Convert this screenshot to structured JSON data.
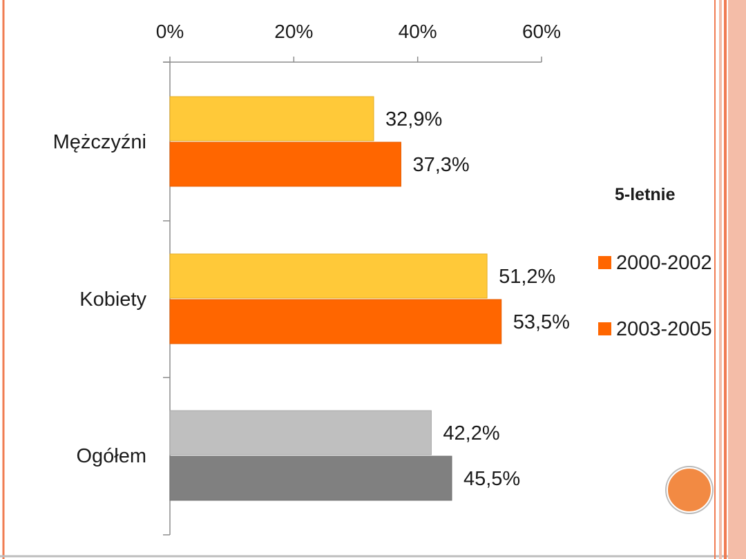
{
  "chart_data": {
    "type": "bar",
    "orientation": "horizontal",
    "categories": [
      "Mężczyźni",
      "Kobiety",
      "Ogółem"
    ],
    "series": [
      {
        "name": "2000-2002",
        "values": [
          32.9,
          51.2,
          42.2
        ],
        "colors": [
          "#ffc939",
          "#ffc939",
          "#bfbfbf"
        ]
      },
      {
        "name": "2003-2005",
        "values": [
          37.3,
          53.5,
          45.5
        ],
        "colors": [
          "#ff6600",
          "#ff6600",
          "#808080"
        ]
      }
    ],
    "data_labels": [
      [
        "32,9%",
        "51,2%",
        "42,2%"
      ],
      [
        "37,3%",
        "53,5%",
        "45,5%"
      ]
    ],
    "x_ticks": [
      "0%",
      "20%",
      "40%",
      "60%"
    ],
    "xlim": [
      0,
      60
    ],
    "x_axis_position": "top",
    "grid": false,
    "legend": {
      "title": "5-letnie",
      "position": "right",
      "items": [
        {
          "label": "2000-2002",
          "color": "#ff6600"
        },
        {
          "label": "2003-2005",
          "color": "#ff6600"
        }
      ]
    }
  },
  "colors": {
    "frame_orange": "#f07c52",
    "frame_peach": "#f4bda8",
    "accent_dot": "#f28a43"
  }
}
